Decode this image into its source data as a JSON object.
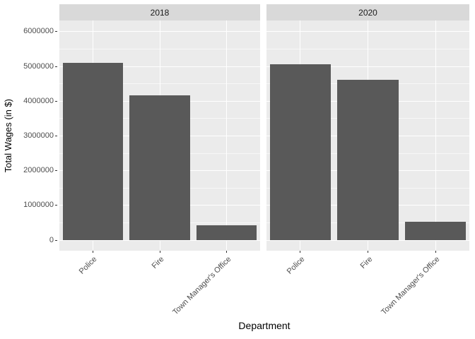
{
  "chart_data": {
    "type": "bar",
    "title": "",
    "xlabel": "Department",
    "ylabel": "Total Wages (in $)",
    "categories": [
      "Police",
      "Fire",
      "Town Manager's Office"
    ],
    "facets": [
      {
        "label": "2018",
        "values": [
          5100000,
          4170000,
          430000
        ]
      },
      {
        "label": "2020",
        "values": [
          5060000,
          4610000,
          520000
        ]
      }
    ],
    "y_ticks": [
      0,
      1000000,
      2000000,
      3000000,
      4000000,
      5000000,
      6000000
    ],
    "y_minor_ticks": [
      500000,
      1500000,
      2500000,
      3500000,
      4500000,
      5500000
    ],
    "ylim": [
      -300000,
      6320000
    ],
    "grid": "on",
    "legend": "none",
    "colors": {
      "bar": "#595959",
      "panel_bg": "#EBEBEB",
      "strip_bg": "#D9D9D9",
      "gridline": "#FFFFFF",
      "axis_text": "#4D4D4D",
      "strip_text": "#1A1A1A",
      "title_text": "#000000"
    }
  }
}
